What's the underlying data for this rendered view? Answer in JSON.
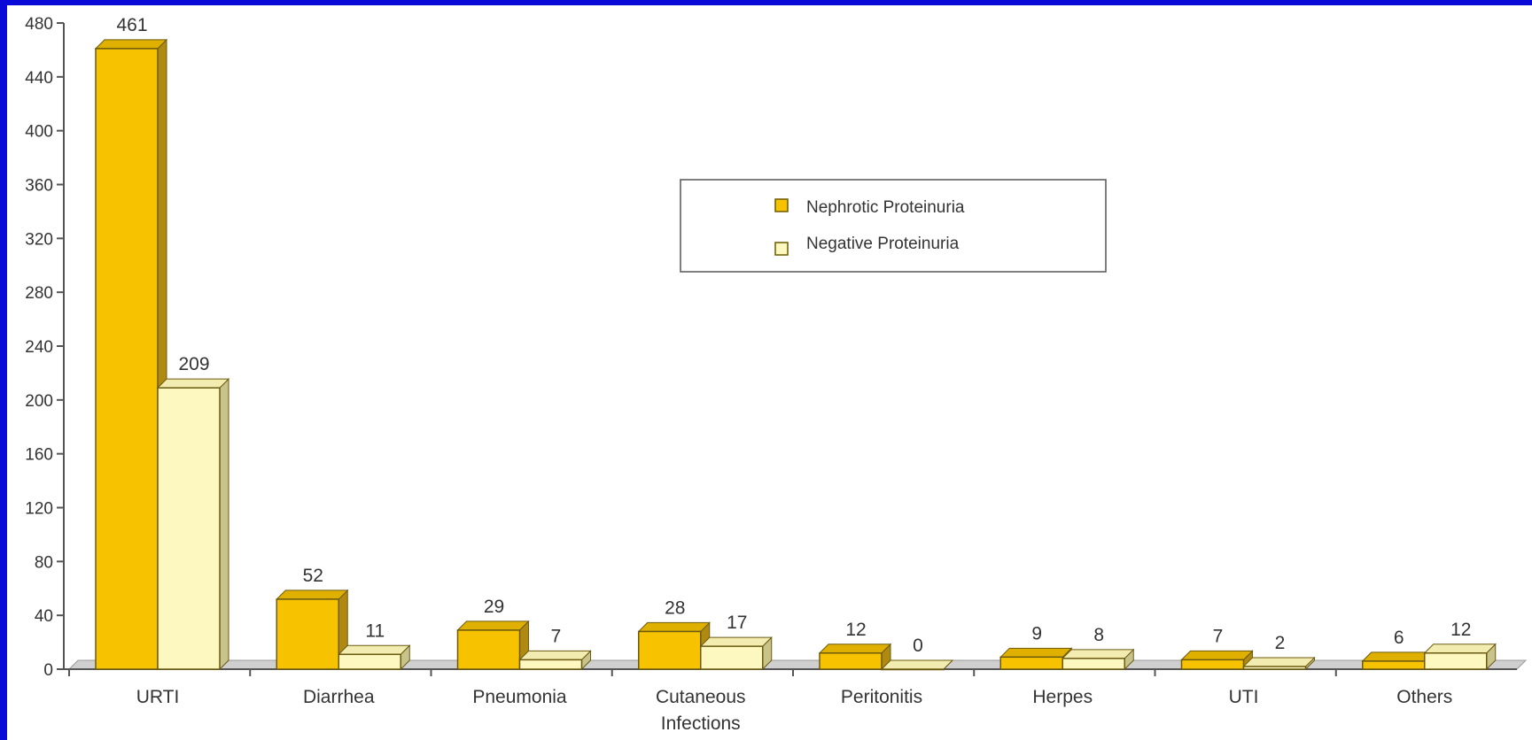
{
  "chart_data": {
    "type": "bar",
    "categories": [
      "URTI",
      "Diarrhea",
      "Pneumonia",
      "Cutaneous Infections",
      "Peritonitis",
      "Herpes",
      "UTI",
      "Others"
    ],
    "category_lines": [
      [
        "URTI"
      ],
      [
        "Diarrhea"
      ],
      [
        "Pneumonia"
      ],
      [
        "Cutaneous",
        "Infections"
      ],
      [
        "Peritonitis"
      ],
      [
        "Herpes"
      ],
      [
        "UTI"
      ],
      [
        "Others"
      ]
    ],
    "series": [
      {
        "name": "Nephrotic Proteinuria",
        "values": [
          461,
          52,
          29,
          28,
          12,
          9,
          7,
          6
        ],
        "color": "#f7c300"
      },
      {
        "name": "Negative Proteinuria",
        "values": [
          209,
          11,
          7,
          17,
          0,
          8,
          2,
          12
        ],
        "color": "#fdf7c0"
      }
    ],
    "ylim": [
      0,
      480
    ],
    "yticks": [
      0,
      40,
      80,
      120,
      160,
      200,
      240,
      280,
      320,
      360,
      400,
      440,
      480
    ],
    "grid": false,
    "legend_position": "top-center",
    "title": "",
    "xlabel": "",
    "ylabel": ""
  }
}
